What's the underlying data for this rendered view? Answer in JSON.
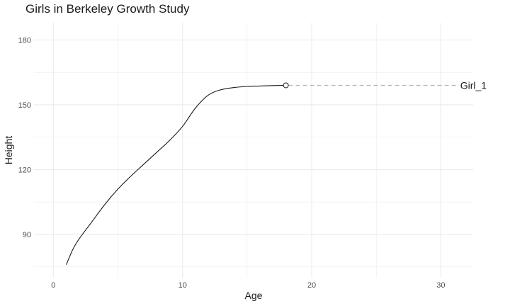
{
  "chart_data": {
    "type": "line",
    "title": "Girls in Berkeley Growth Study",
    "xlabel": "Age",
    "ylabel": "Height",
    "xlim": [
      -1.5,
      32.5
    ],
    "ylim": [
      70,
      188
    ],
    "x_ticks": [
      0,
      10,
      20,
      30
    ],
    "y_ticks": [
      90,
      120,
      150,
      180
    ],
    "grid": true,
    "series": [
      {
        "name": "Girl_1",
        "x": [
          1,
          1.5,
          2,
          3,
          4,
          5,
          6,
          7,
          8,
          9,
          10,
          11,
          12,
          13,
          14,
          15,
          16,
          17,
          18
        ],
        "y": [
          76,
          83,
          88,
          96,
          104,
          111,
          117,
          122.5,
          128,
          133.5,
          140,
          148.5,
          154.5,
          157,
          158,
          158.5,
          158.7,
          158.9,
          159
        ],
        "end_label": "Girl_1",
        "label_x": 31.5
      }
    ],
    "colors": {
      "line": "#1a1a1a",
      "grid": "#ebebeb",
      "dashed": "#b3b3b3"
    }
  }
}
